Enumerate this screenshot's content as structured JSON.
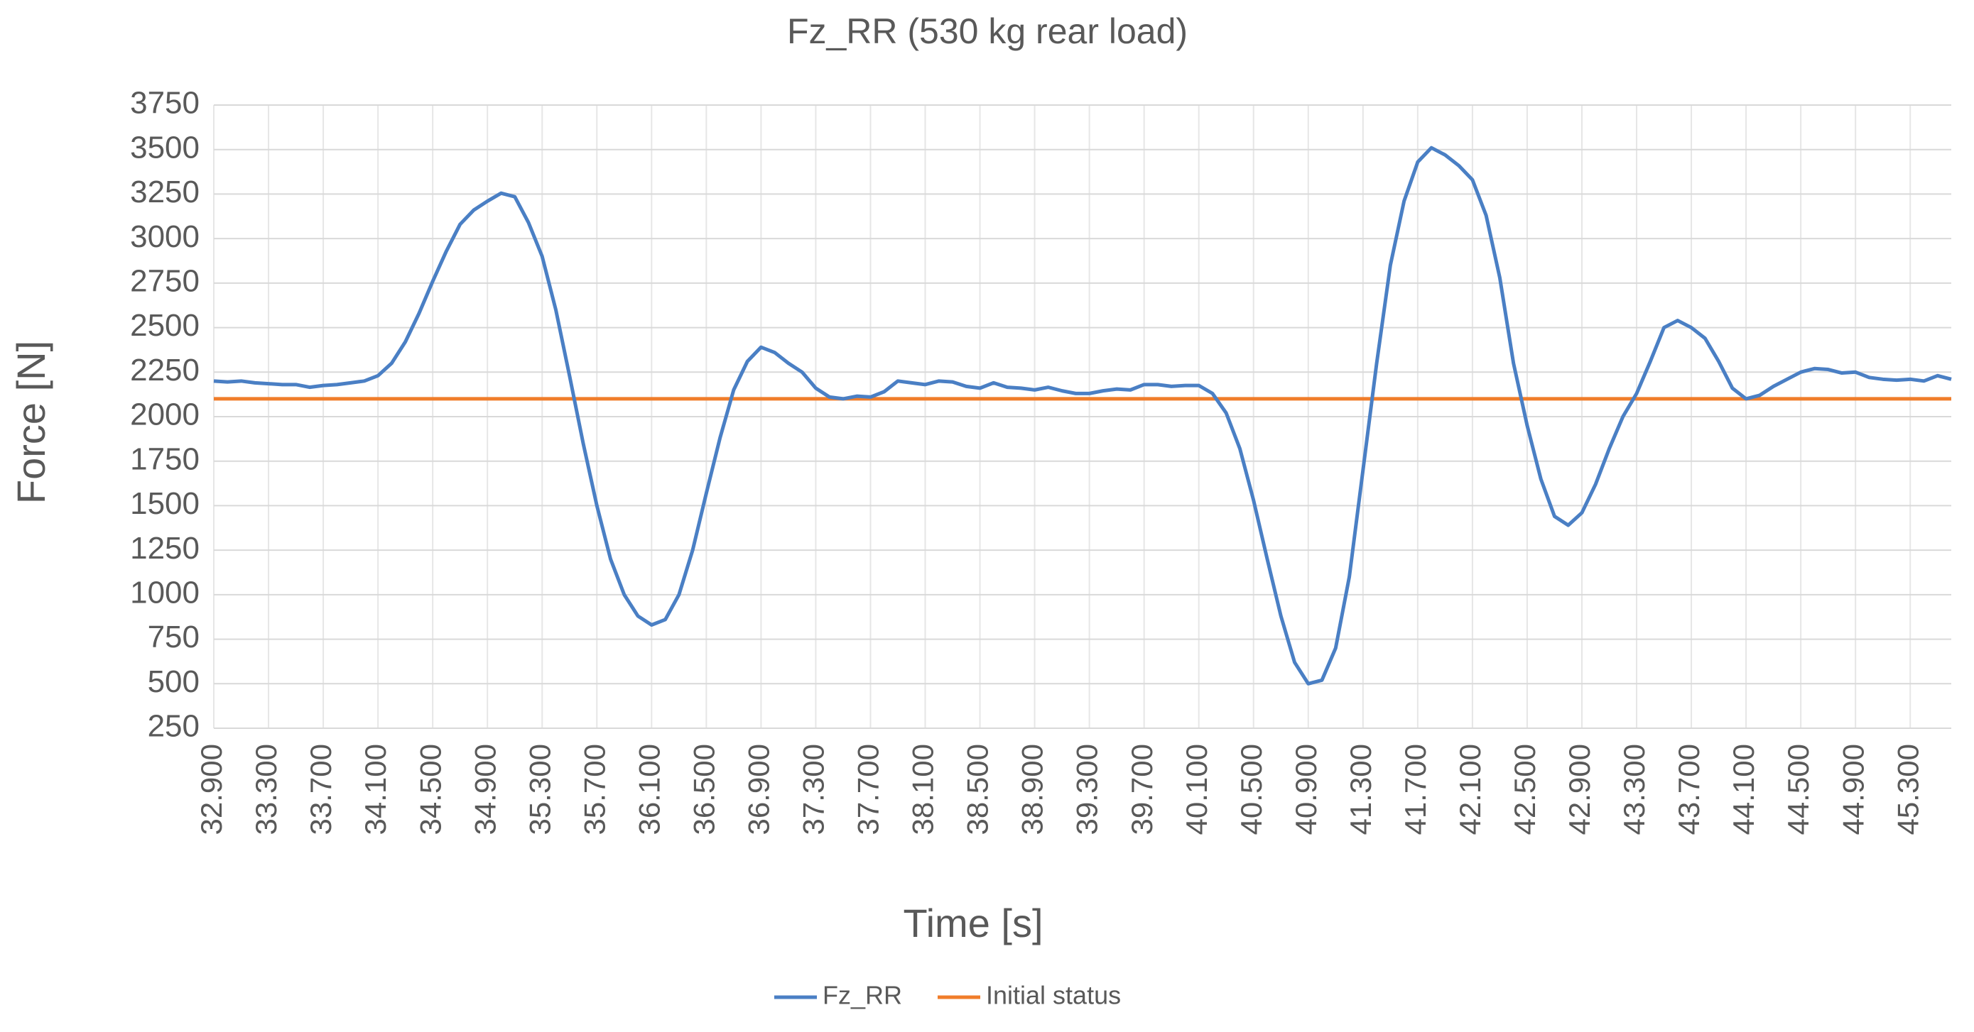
{
  "chart_data": {
    "type": "line",
    "title": "Fz_RR (530 kg rear load)",
    "x_label": "Time [s]",
    "y_label": "Force [N]",
    "x": [
      32.9,
      33,
      33.1,
      33.2,
      33.3,
      33.4,
      33.5,
      33.6,
      33.7,
      33.8,
      33.9,
      34,
      34.1,
      34.2,
      34.3,
      34.4,
      34.5,
      34.6,
      34.7,
      34.8,
      34.9,
      35,
      35.1,
      35.2,
      35.3,
      35.4,
      35.5,
      35.6,
      35.7,
      35.8,
      35.9,
      36,
      36.1,
      36.2,
      36.3,
      36.4,
      36.5,
      36.6,
      36.7,
      36.8,
      36.9,
      37,
      37.1,
      37.2,
      37.3,
      37.4,
      37.5,
      37.6,
      37.7,
      37.8,
      37.9,
      38,
      38.1,
      38.2,
      38.3,
      38.4,
      38.5,
      38.6,
      38.7,
      38.8,
      38.9,
      39,
      39.1,
      39.2,
      39.3,
      39.4,
      39.5,
      39.6,
      39.7,
      39.8,
      39.9,
      40,
      40.1,
      40.2,
      40.3,
      40.4,
      40.5,
      40.6,
      40.7,
      40.8,
      40.9,
      41,
      41.1,
      41.2,
      41.3,
      41.4,
      41.5,
      41.6,
      41.7,
      41.8,
      41.9,
      42,
      42.1,
      42.2,
      42.3,
      42.4,
      42.5,
      42.6,
      42.7,
      42.8,
      42.9,
      43,
      43.1,
      43.2,
      43.3,
      43.4,
      43.5,
      43.6,
      43.7,
      43.8,
      43.9,
      44,
      44.1,
      44.2,
      44.3,
      44.4,
      44.5,
      44.6,
      44.7,
      44.8,
      44.9,
      45,
      45.1,
      45.2,
      45.3,
      45.4,
      45.5,
      45.6
    ],
    "series": [
      {
        "name": "Fz_RR",
        "color": "#4a7fc4",
        "values": [
          2200,
          2195,
          2200,
          2190,
          2185,
          2180,
          2180,
          2165,
          2175,
          2180,
          2190,
          2200,
          2230,
          2300,
          2420,
          2580,
          2760,
          2930,
          3080,
          3160,
          3210,
          3255,
          3235,
          3090,
          2900,
          2600,
          2230,
          1850,
          1500,
          1200,
          1000,
          880,
          830,
          860,
          1000,
          1250,
          1570,
          1880,
          2150,
          2310,
          2390,
          2360,
          2300,
          2250,
          2160,
          2110,
          2100,
          2115,
          2110,
          2140,
          2200,
          2190,
          2180,
          2200,
          2195,
          2170,
          2160,
          2190,
          2165,
          2160,
          2150,
          2165,
          2145,
          2130,
          2130,
          2145,
          2155,
          2150,
          2180,
          2180,
          2170,
          2175,
          2175,
          2130,
          2020,
          1820,
          1530,
          1200,
          880,
          620,
          500,
          520,
          700,
          1100,
          1700,
          2300,
          2850,
          3210,
          3430,
          3510,
          3470,
          3410,
          3330,
          3130,
          2780,
          2300,
          1950,
          1650,
          1440,
          1390,
          1460,
          1620,
          1820,
          2000,
          2130,
          2310,
          2500,
          2540,
          2500,
          2440,
          2310,
          2160,
          2100,
          2120,
          2170,
          2210,
          2250,
          2270,
          2265,
          2245,
          2250,
          2220,
          2210,
          2205,
          2210,
          2200,
          2230,
          2210
        ]
      },
      {
        "name": "Initial status",
        "color": "#f07d2a",
        "values": [
          2100,
          2100,
          2100,
          2100,
          2100,
          2100,
          2100,
          2100,
          2100,
          2100,
          2100,
          2100,
          2100,
          2100,
          2100,
          2100,
          2100,
          2100,
          2100,
          2100,
          2100,
          2100,
          2100,
          2100,
          2100,
          2100,
          2100,
          2100,
          2100,
          2100,
          2100,
          2100,
          2100,
          2100,
          2100,
          2100,
          2100,
          2100,
          2100,
          2100,
          2100,
          2100,
          2100,
          2100,
          2100,
          2100,
          2100,
          2100,
          2100,
          2100,
          2100,
          2100,
          2100,
          2100,
          2100,
          2100,
          2100,
          2100,
          2100,
          2100,
          2100,
          2100,
          2100,
          2100,
          2100,
          2100,
          2100,
          2100,
          2100,
          2100,
          2100,
          2100,
          2100,
          2100,
          2100,
          2100,
          2100,
          2100,
          2100,
          2100,
          2100,
          2100,
          2100,
          2100,
          2100,
          2100,
          2100,
          2100,
          2100,
          2100,
          2100,
          2100,
          2100,
          2100,
          2100,
          2100,
          2100,
          2100,
          2100,
          2100,
          2100,
          2100,
          2100,
          2100,
          2100,
          2100,
          2100,
          2100,
          2100,
          2100,
          2100,
          2100,
          2100,
          2100,
          2100,
          2100,
          2100,
          2100,
          2100,
          2100,
          2100,
          2100,
          2100,
          2100,
          2100,
          2100,
          2100,
          2100
        ]
      }
    ],
    "xlim": [
      32.9,
      45.6
    ],
    "xticks": [
      {
        "value": 32.9,
        "label": "32.900"
      },
      {
        "value": 33.3,
        "label": "33.300"
      },
      {
        "value": 33.7,
        "label": "33.700"
      },
      {
        "value": 34.1,
        "label": "34.100"
      },
      {
        "value": 34.5,
        "label": "34.500"
      },
      {
        "value": 34.9,
        "label": "34.900"
      },
      {
        "value": 35.3,
        "label": "35.300"
      },
      {
        "value": 35.7,
        "label": "35.700"
      },
      {
        "value": 36.1,
        "label": "36.100"
      },
      {
        "value": 36.5,
        "label": "36.500"
      },
      {
        "value": 36.9,
        "label": "36.900"
      },
      {
        "value": 37.3,
        "label": "37.300"
      },
      {
        "value": 37.7,
        "label": "37.700"
      },
      {
        "value": 38.1,
        "label": "38.100"
      },
      {
        "value": 38.5,
        "label": "38.500"
      },
      {
        "value": 38.9,
        "label": "38.900"
      },
      {
        "value": 39.3,
        "label": "39.300"
      },
      {
        "value": 39.7,
        "label": "39.700"
      },
      {
        "value": 40.1,
        "label": "40.100"
      },
      {
        "value": 40.5,
        "label": "40.500"
      },
      {
        "value": 40.9,
        "label": "40.900"
      },
      {
        "value": 41.3,
        "label": "41.300"
      },
      {
        "value": 41.7,
        "label": "41.700"
      },
      {
        "value": 42.1,
        "label": "42.100"
      },
      {
        "value": 42.5,
        "label": "42.500"
      },
      {
        "value": 42.9,
        "label": "42.900"
      },
      {
        "value": 43.3,
        "label": "43.300"
      },
      {
        "value": 43.7,
        "label": "43.700"
      },
      {
        "value": 44.1,
        "label": "44.100"
      },
      {
        "value": 44.5,
        "label": "44.500"
      },
      {
        "value": 44.9,
        "label": "44.900"
      },
      {
        "value": 45.3,
        "label": "45.300"
      }
    ],
    "ylim": [
      250,
      3750
    ],
    "yticks": [
      250,
      500,
      750,
      1000,
      1250,
      1500,
      1750,
      2000,
      2250,
      2500,
      2750,
      3000,
      3250,
      3500,
      3750
    ],
    "grid": true,
    "legend": "bottom"
  }
}
